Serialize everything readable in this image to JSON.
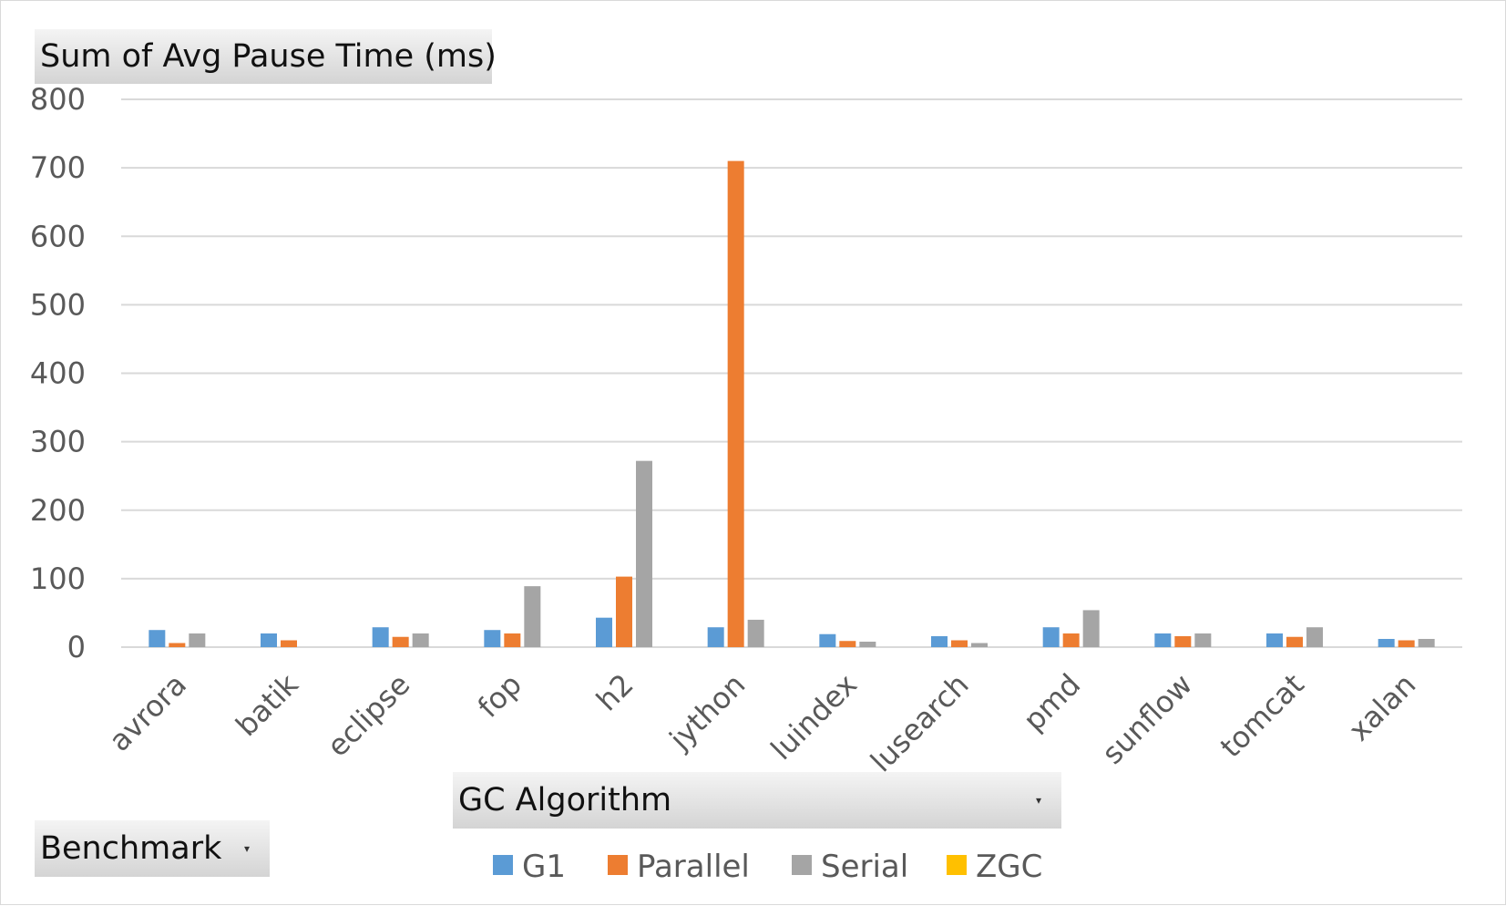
{
  "pivot": {
    "value_field": "Sum of Avg Pause Time (ms)",
    "series_field": "GC Algorithm",
    "category_field": "Benchmark",
    "dropdown_glyph": "▾"
  },
  "chart_data": {
    "type": "bar",
    "title": "",
    "xlabel": "",
    "ylabel": "",
    "ylim": [
      0,
      800
    ],
    "yticks": [
      0,
      100,
      200,
      300,
      400,
      500,
      600,
      700,
      800
    ],
    "grid": true,
    "legend_position": "bottom-center",
    "categories": [
      "avrora",
      "batik",
      "eclipse",
      "fop",
      "h2",
      "jython",
      "luindex",
      "lusearch",
      "pmd",
      "sunflow",
      "tomcat",
      "xalan"
    ],
    "series": [
      {
        "name": "G1",
        "color": "#5b9bd5",
        "values": [
          25,
          20,
          29,
          25,
          43,
          29,
          19,
          16,
          29,
          20,
          20,
          12
        ]
      },
      {
        "name": "Parallel",
        "color": "#ed7d31",
        "values": [
          6,
          10,
          15,
          20,
          103,
          710,
          9,
          10,
          20,
          16,
          15,
          10
        ]
      },
      {
        "name": "Serial",
        "color": "#a5a5a5",
        "values": [
          20,
          0,
          20,
          89,
          272,
          40,
          8,
          6,
          54,
          20,
          29,
          12
        ]
      },
      {
        "name": "ZGC",
        "color": "#ffc000",
        "values": [
          0,
          0,
          0,
          0,
          0,
          0,
          0,
          0,
          0,
          0,
          0,
          0
        ]
      }
    ]
  }
}
